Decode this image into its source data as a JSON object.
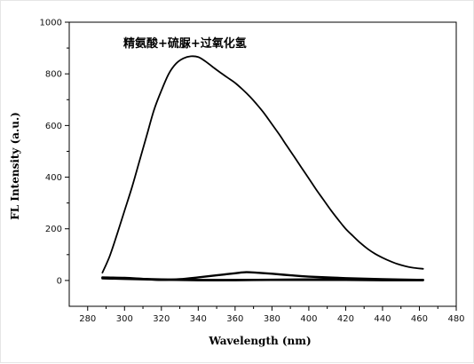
{
  "chart_data": {
    "type": "line",
    "xlabel": "Wavelength (nm)",
    "ylabel": "FL Intensity (a.u.)",
    "xlim": [
      270,
      480
    ],
    "ylim": [
      -100,
      1000
    ],
    "xticks": [
      280,
      300,
      320,
      340,
      360,
      380,
      400,
      420,
      440,
      460,
      480
    ],
    "yticks": [
      0,
      200,
      400,
      600,
      800,
      1000
    ],
    "grid": false,
    "annotation": "精氨酸+硫脲+过氧化氢",
    "series": [
      {
        "name": "精氨酸+硫脲+过氧化氢",
        "x": [
          288,
          292,
          296,
          300,
          304,
          308,
          312,
          316,
          320,
          324,
          328,
          332,
          336,
          340,
          344,
          348,
          352,
          356,
          360,
          364,
          368,
          372,
          376,
          380,
          384,
          388,
          392,
          396,
          400,
          404,
          408,
          412,
          416,
          420,
          424,
          428,
          432,
          436,
          440,
          444,
          448,
          452,
          456,
          462
        ],
        "y": [
          30,
          95,
          180,
          270,
          360,
          460,
          560,
          660,
          735,
          800,
          840,
          860,
          868,
          865,
          848,
          826,
          805,
          785,
          765,
          740,
          712,
          680,
          645,
          605,
          565,
          522,
          480,
          437,
          395,
          352,
          312,
          272,
          235,
          200,
          172,
          145,
          122,
          103,
          88,
          75,
          64,
          56,
          50,
          45
        ]
      },
      {
        "x": [
          288,
          300,
          310,
          320,
          330,
          340,
          350,
          360,
          366,
          372,
          380,
          390,
          400,
          420,
          440,
          462
        ],
        "y": [
          12,
          10,
          6,
          2,
          5,
          12,
          20,
          28,
          32,
          30,
          26,
          20,
          15,
          9,
          5,
          2
        ]
      },
      {
        "x": [
          288,
          300,
          320,
          340,
          360,
          380,
          400,
          420,
          440,
          462
        ],
        "y": [
          10,
          8,
          4,
          2,
          2,
          3,
          4,
          4,
          3,
          2
        ]
      },
      {
        "x": [
          288,
          300,
          320,
          340,
          360,
          380,
          400,
          420,
          440,
          462
        ],
        "y": [
          8,
          6,
          3,
          1,
          1,
          2,
          2,
          2,
          1,
          1
        ]
      }
    ]
  }
}
